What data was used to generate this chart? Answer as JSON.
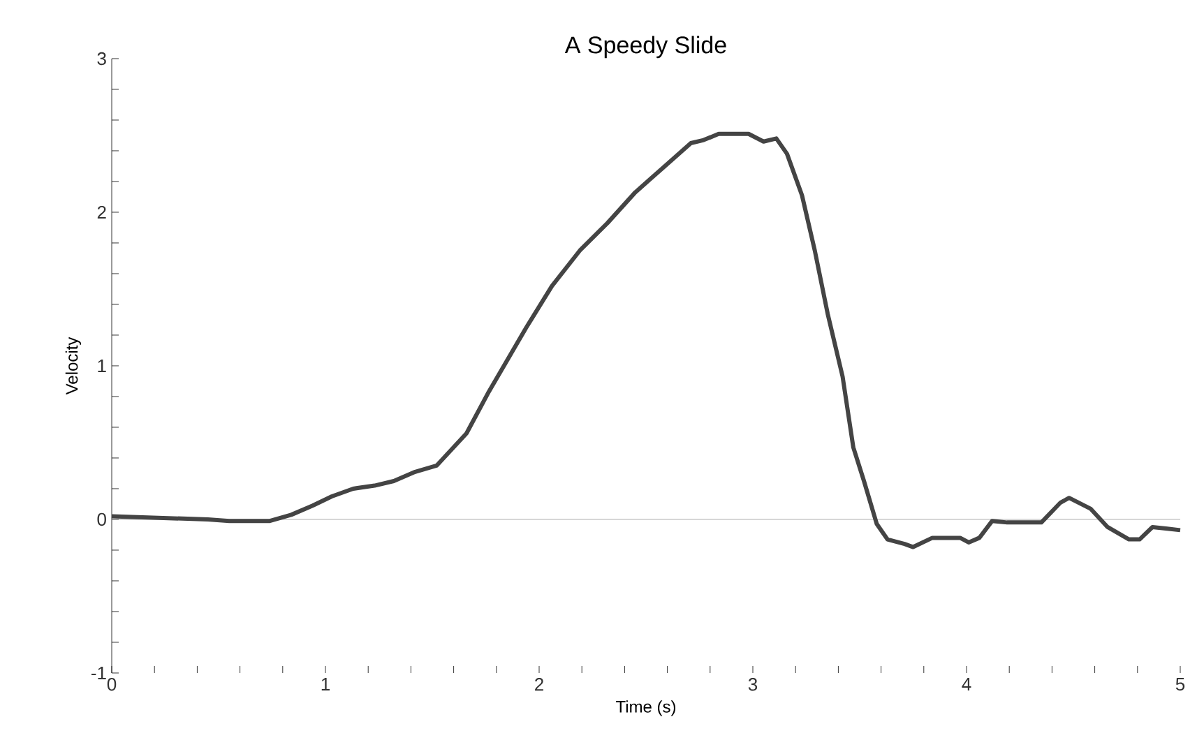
{
  "chart_data": {
    "type": "line",
    "title": "A Speedy Slide",
    "xlabel": "Time (s)",
    "ylabel": "Velocity",
    "series": [
      {
        "color": "#444444",
        "x": [
          0,
          0.45,
          0.55,
          0.74,
          0.84,
          0.94,
          1.03,
          1.13,
          1.23,
          1.32,
          1.42,
          1.52,
          1.66,
          1.76,
          1.94,
          2.06,
          2.19,
          2.32,
          2.45,
          2.58,
          2.71,
          2.77,
          2.84,
          2.98,
          3.05,
          3.11,
          3.16,
          3.23,
          3.29,
          3.35,
          3.42,
          3.47,
          3.52,
          3.58,
          3.63,
          3.71,
          3.75,
          3.84,
          3.97,
          4.01,
          4.06,
          4.12,
          4.19,
          4.35,
          4.44,
          4.48,
          4.58,
          4.66,
          4.76,
          4.81,
          4.87,
          4.94,
          5.0
        ],
        "values": [
          0.02,
          0.0,
          -0.01,
          -0.01,
          0.03,
          0.09,
          0.15,
          0.2,
          0.22,
          0.25,
          0.31,
          0.35,
          0.56,
          0.82,
          1.25,
          1.52,
          1.75,
          1.93,
          2.13,
          2.29,
          2.45,
          2.47,
          2.51,
          2.51,
          2.46,
          2.48,
          2.38,
          2.11,
          1.75,
          1.34,
          0.93,
          0.47,
          0.25,
          -0.03,
          -0.13,
          -0.16,
          -0.18,
          -0.12,
          -0.12,
          -0.15,
          -0.12,
          -0.01,
          -0.02,
          -0.02,
          0.11,
          0.14,
          0.07,
          -0.05,
          -0.13,
          -0.13,
          -0.05,
          -0.06,
          -0.07
        ]
      }
    ],
    "xlim": [
      0,
      5
    ],
    "ylim": [
      -1,
      3
    ],
    "xticks": [
      0,
      {
        "value": 0.2,
        "label": null
      },
      {
        "value": 0.4,
        "label": null
      },
      {
        "value": 0.6,
        "label": null
      },
      {
        "value": 0.8,
        "label": null
      },
      1,
      {
        "value": 1.2,
        "label": null
      },
      {
        "value": 1.4,
        "label": null
      },
      {
        "value": 1.6,
        "label": null
      },
      {
        "value": 1.8,
        "label": null
      },
      2,
      {
        "value": 2.2,
        "label": null
      },
      {
        "value": 2.4,
        "label": null
      },
      {
        "value": 2.6,
        "label": null
      },
      {
        "value": 2.8,
        "label": null
      },
      3,
      {
        "value": 3.2,
        "label": null
      },
      {
        "value": 3.4,
        "label": null
      },
      {
        "value": 3.6,
        "label": null
      },
      {
        "value": 3.8,
        "label": null
      },
      4,
      {
        "value": 4.2,
        "label": null
      },
      {
        "value": 4.4,
        "label": null
      },
      {
        "value": 4.6,
        "label": null
      },
      {
        "value": 4.8,
        "label": null
      },
      5
    ],
    "yticks": [
      -1,
      {
        "value": -0.8,
        "label": null
      },
      {
        "value": -0.6,
        "label": null
      },
      {
        "value": -0.4,
        "label": null
      },
      {
        "value": -0.2,
        "label": null
      },
      0,
      {
        "value": 0.2,
        "label": null
      },
      {
        "value": 0.4,
        "label": null
      },
      {
        "value": 0.6,
        "label": null
      },
      {
        "value": 0.8,
        "label": null
      },
      1,
      {
        "value": 1.2,
        "label": null
      },
      {
        "value": 1.4,
        "label": null
      },
      {
        "value": 1.6,
        "label": null
      },
      {
        "value": 1.8,
        "label": null
      },
      2,
      {
        "value": 2.2,
        "label": null
      },
      {
        "value": 2.4,
        "label": null
      },
      {
        "value": 2.6,
        "label": null
      },
      {
        "value": 2.8,
        "label": null
      },
      3
    ],
    "ref_lines": [
      {
        "axis": "y",
        "value": 0,
        "color": "#999999"
      }
    ],
    "line_style": "solid",
    "marker": "none"
  }
}
